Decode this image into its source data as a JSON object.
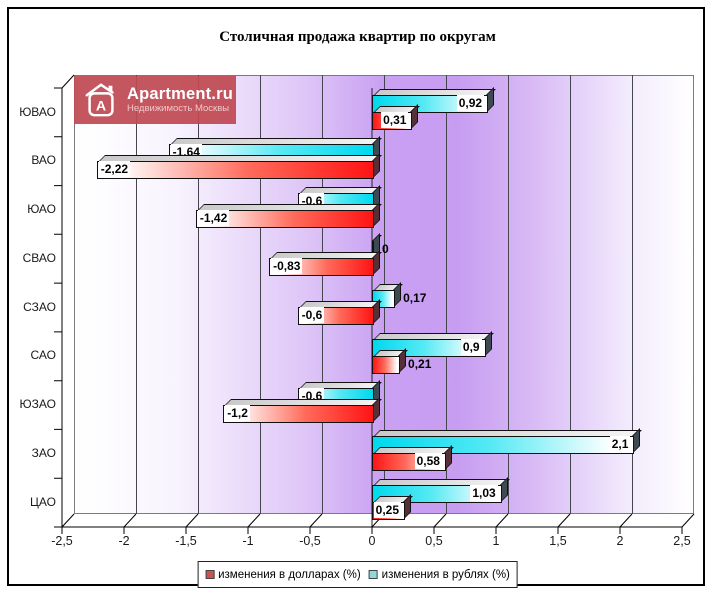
{
  "window": {
    "title": "Столичная продажа квартир по округам"
  },
  "logo": {
    "brand": "Apartment.ru",
    "subtitle": "Недвижимость Москвы",
    "letter": "A",
    "bg_color": "#c04a54"
  },
  "legend": {
    "items": [
      {
        "label": "изменения в долларах (%)",
        "swatch": "#c9534f"
      },
      {
        "label": "изменения в рублях (%)",
        "swatch": "#8fd9dd"
      }
    ]
  },
  "chart_data": {
    "type": "bar",
    "orientation": "horizontal",
    "title": "Столичная продажа квартир по округам",
    "categories": [
      "ЮВАО",
      "ВАО",
      "ЮАО",
      "СВАО",
      "СЗАО",
      "САО",
      "ЮЗАО",
      "ЗАО",
      "ЦАО"
    ],
    "series": [
      {
        "name": "изменения в рублях (%)",
        "color": "#00d8ee",
        "values": [
          0.92,
          -1.64,
          -0.6,
          0,
          0.17,
          0.9,
          -0.6,
          2.1,
          1.03
        ],
        "labels": [
          "0,92",
          "-1,64",
          "-0,6",
          "0",
          "0,17",
          "0,9",
          "-0,6",
          "2,1",
          "1,03"
        ]
      },
      {
        "name": "изменения в долларах (%)",
        "color": "#ff1414",
        "values": [
          0.31,
          -2.22,
          -1.42,
          -0.83,
          -0.6,
          0.21,
          -1.2,
          0.58,
          0.25
        ],
        "labels": [
          "0,31",
          "-2,22",
          "-1,42",
          "-0,83",
          "-0,6",
          "0,21",
          "-1,2",
          "0,58",
          "0,25"
        ]
      }
    ],
    "xlim": [
      -2.5,
      2.5
    ],
    "x_tick_labels": [
      "-2,5",
      "-2",
      "-1,5",
      "-1",
      "-0,5",
      "0",
      "0,5",
      "1",
      "1,5",
      "2",
      "2,5"
    ],
    "legend_position": "bottom",
    "grid": "vertical",
    "background": "white-purple-gradient"
  }
}
